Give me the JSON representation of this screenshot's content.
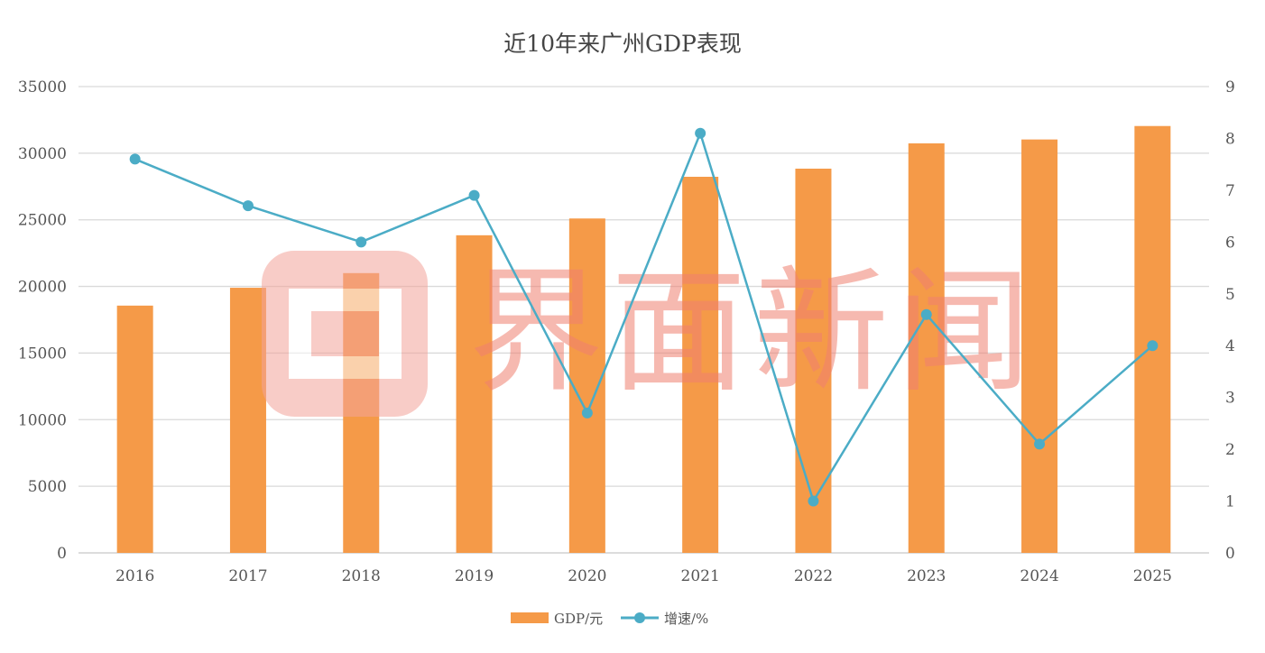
{
  "chart_data": {
    "type": "bar+line",
    "title": "近10年来广州GDP表现",
    "categories": [
      "2016",
      "2017",
      "2018",
      "2019",
      "2020",
      "2021",
      "2022",
      "2023",
      "2024",
      "2025"
    ],
    "series": [
      {
        "name": "GDP/元",
        "type": "bar",
        "axis": "left",
        "color": "#F59A48",
        "values": [
          18560,
          19900,
          21000,
          23840,
          25100,
          28230,
          28840,
          30740,
          31030,
          32040
        ]
      },
      {
        "name": "增速/%",
        "type": "line",
        "axis": "right",
        "color": "#4BACC6",
        "values": [
          7.6,
          6.7,
          6.0,
          6.9,
          2.7,
          8.1,
          1.0,
          4.6,
          2.1,
          4.0
        ]
      }
    ],
    "y_left": {
      "min": 0,
      "max": 35000,
      "ticks": [
        "0",
        "5000",
        "10000",
        "15000",
        "20000",
        "25000",
        "30000",
        "35000"
      ]
    },
    "y_right": {
      "min": 0,
      "max": 9,
      "ticks": [
        "0",
        "1",
        "2",
        "3",
        "4",
        "5",
        "6",
        "7",
        "8",
        "9"
      ]
    },
    "grid": true,
    "legend": "bottom"
  },
  "watermark": {
    "text": "界面新闻",
    "color": "#F08070"
  }
}
